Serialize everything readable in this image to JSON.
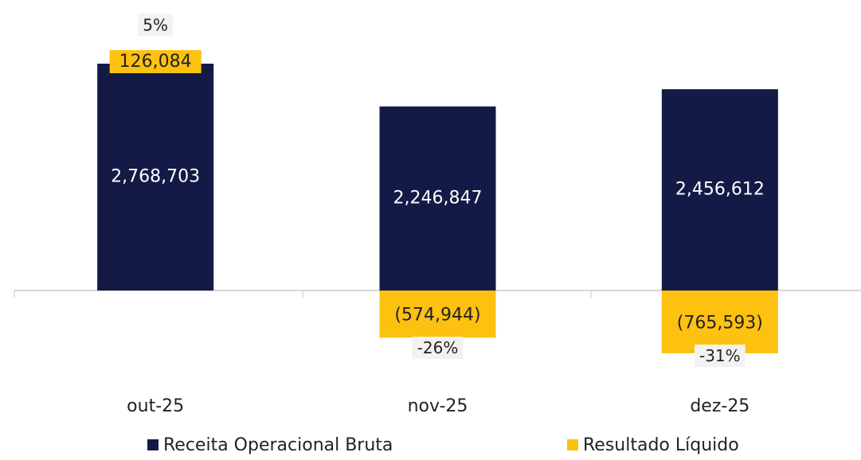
{
  "chart_data": {
    "type": "bar",
    "categories": [
      "out-25",
      "nov-25",
      "dez-25"
    ],
    "series": [
      {
        "name": "Receita Operacional Bruta",
        "color": "#141a46",
        "values": [
          2768703,
          2246847,
          2456612
        ],
        "value_labels": [
          "2,768,703",
          "2,246,847",
          "2,456,612"
        ]
      },
      {
        "name": "Resultado Líquido",
        "color": "#fdc10f",
        "values": [
          126084,
          -574944,
          -765593
        ],
        "value_labels": [
          "126,084",
          "(574,944)",
          "(765,593)"
        ]
      }
    ],
    "annotations": [
      "5%",
      "-26%",
      "-31%"
    ],
    "ylim": [
      -1000000,
      3400000
    ],
    "legend": "bottom"
  }
}
